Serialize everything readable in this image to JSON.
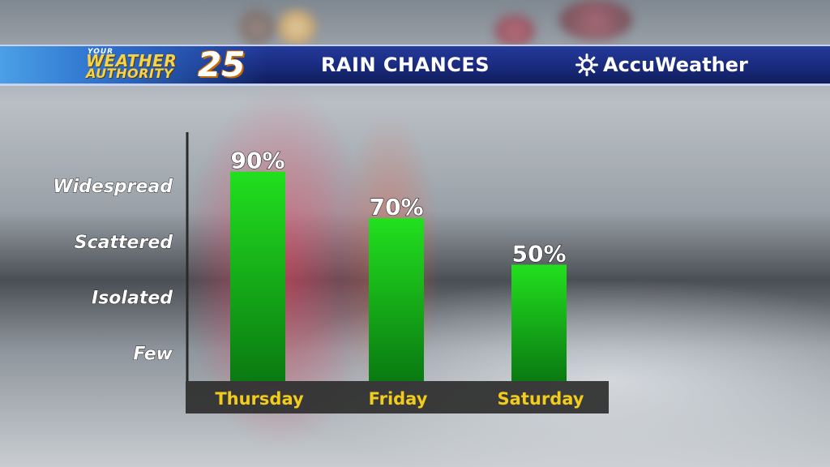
{
  "header": {
    "logo_your": "YOUR",
    "logo_weather": "WEATHER",
    "logo_authority": "AUTHORITY",
    "logo_number": "25",
    "title": "RAIN CHANCES",
    "brand": "AccuWeather",
    "brand_icon": "sun-icon"
  },
  "colors": {
    "bar_top": "#22e01e",
    "bar_bottom": "#0a7a12",
    "category_text": "#f2cc1c",
    "header_bg": "#1a2c80"
  },
  "chart_data": {
    "type": "bar",
    "title": "RAIN CHANCES",
    "categories": [
      "Thursday",
      "Friday",
      "Saturday"
    ],
    "values": [
      90,
      70,
      50
    ],
    "value_labels": [
      "90%",
      "70%",
      "50%"
    ],
    "ylim": [
      0,
      100
    ],
    "y_levels": [
      {
        "label": "Few",
        "value": 12
      },
      {
        "label": "Isolated",
        "value": 36
      },
      {
        "label": "Scattered",
        "value": 60
      },
      {
        "label": "Widespread",
        "value": 84
      }
    ],
    "grid": false,
    "legend": "none"
  }
}
